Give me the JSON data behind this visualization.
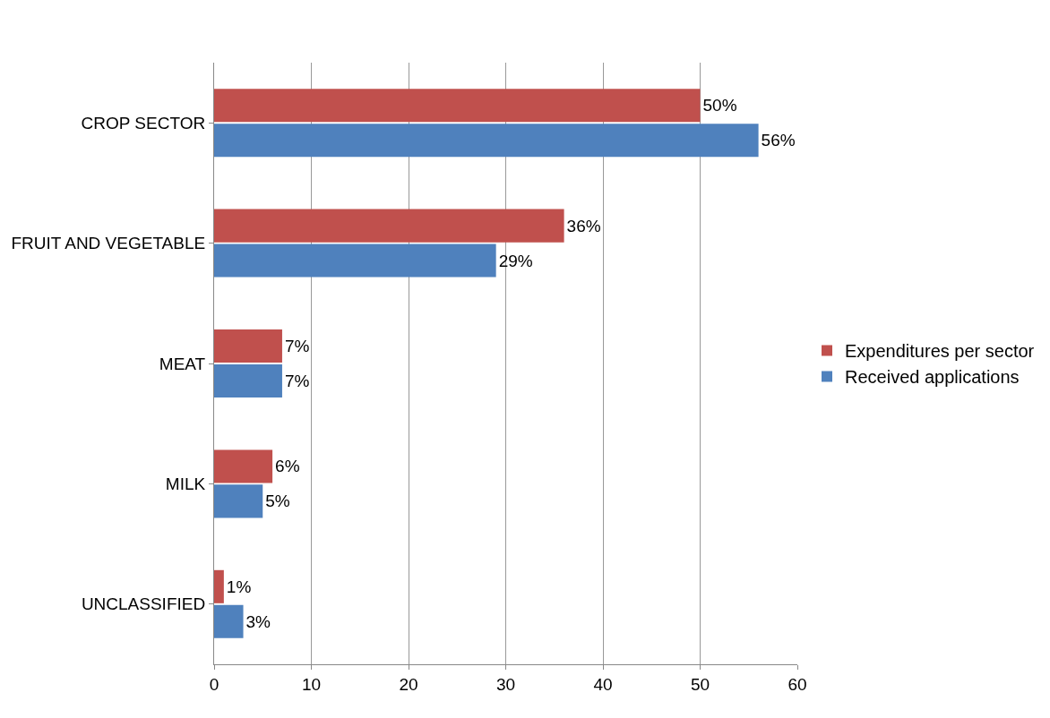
{
  "chart_data": {
    "type": "bar",
    "orientation": "horizontal",
    "categories": [
      "CROP SECTOR",
      "FRUIT AND VEGETABLE",
      "MEAT",
      "MILK",
      "UNCLASSIFIED"
    ],
    "series": [
      {
        "name": "Expenditures per sector",
        "color": "#c0504d",
        "values": [
          50,
          36,
          7,
          6,
          1
        ],
        "value_labels": [
          "50%",
          "36%",
          "7%",
          "6%",
          "1%"
        ]
      },
      {
        "name": "Received applications",
        "color": "#4f81bd",
        "values": [
          56,
          29,
          7,
          5,
          3
        ],
        "value_labels": [
          "56%",
          "29%",
          "7%",
          "5%",
          "3%"
        ]
      }
    ],
    "xlim": [
      0,
      60
    ],
    "xticks": [
      0,
      10,
      20,
      30,
      40,
      50,
      60
    ],
    "grid": "x",
    "legend": "right"
  }
}
